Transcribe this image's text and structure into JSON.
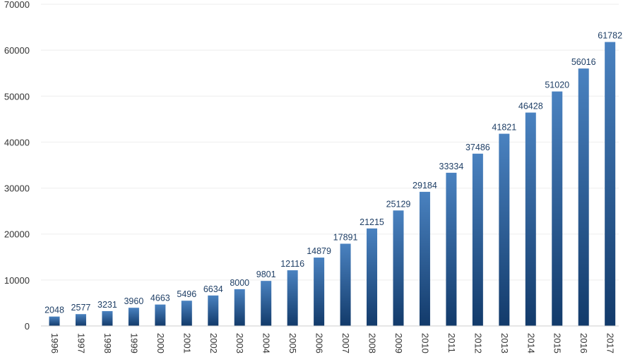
{
  "chart_data": {
    "type": "bar",
    "title": "",
    "xlabel": "",
    "ylabel": "",
    "ylim": [
      0,
      70000
    ],
    "yticks": [
      0,
      10000,
      20000,
      30000,
      40000,
      50000,
      60000,
      70000
    ],
    "ytick_labels": [
      "0",
      "10000",
      "20000",
      "30000",
      "40000",
      "50000",
      "60000",
      "70000"
    ],
    "grid": true,
    "categories": [
      "1996",
      "1997",
      "1998",
      "1999",
      "2000",
      "2001",
      "2002",
      "2003",
      "2004",
      "2005",
      "2006",
      "2007",
      "2008",
      "2009",
      "2010",
      "2011",
      "2012",
      "2013",
      "2014",
      "2015",
      "2016",
      "2017"
    ],
    "values": [
      2048,
      2577,
      3231,
      3960,
      4663,
      5496,
      6634,
      8000,
      9801,
      12116,
      14879,
      17891,
      21215,
      25129,
      29184,
      33334,
      37486,
      41821,
      46428,
      51020,
      56016,
      61782
    ],
    "data_labels": [
      "2048",
      "2577",
      "3231",
      "3960",
      "4663",
      "5496",
      "6634",
      "8000",
      "9801",
      "12116",
      "14879",
      "17891",
      "21215",
      "25129",
      "29184",
      "33334",
      "37486",
      "41821",
      "46428",
      "51020",
      "56016",
      "61782"
    ],
    "colors": {
      "bar_top": "#4a82c0",
      "bar_bottom": "#123a6a",
      "label": "#1f3f66",
      "grid": "#eeeeee",
      "axis": "#cccccc",
      "tick": "#333333"
    }
  }
}
